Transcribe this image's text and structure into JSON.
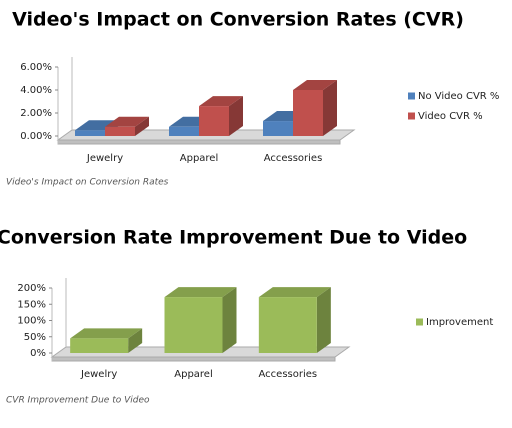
{
  "chart_data": [
    {
      "type": "bar3d",
      "title": "Video's Impact on Conversion Rates (CVR)",
      "categories": [
        "Jewelry",
        "Apparel",
        "Accessories"
      ],
      "series": [
        {
          "name": "No Video CVR %",
          "color": "#4f81bd",
          "values": [
            0.5,
            0.8,
            1.3
          ]
        },
        {
          "name": "Video CVR %",
          "color": "#c0504d",
          "values": [
            0.8,
            2.6,
            4.0
          ]
        }
      ],
      "ylim": [
        0,
        6
      ],
      "yticks": [
        {
          "value": 0,
          "label": "0.00%"
        },
        {
          "value": 2,
          "label": "2.00%"
        },
        {
          "value": 4,
          "label": "4.00%"
        },
        {
          "value": 6,
          "label": "6.00%"
        }
      ],
      "legend": "right",
      "caption": "Video's Impact on Conversion Rates"
    },
    {
      "type": "bar3d",
      "title": "Conversion Rate Improvement Due to Video",
      "categories": [
        "Jewelry",
        "Apparel",
        "Accessories"
      ],
      "series": [
        {
          "name": "Improvement",
          "color": "#9bbb59",
          "values": [
            45,
            172,
            172
          ]
        }
      ],
      "ylim": [
        0,
        200
      ],
      "yticks": [
        {
          "value": 0,
          "label": "0%"
        },
        {
          "value": 50,
          "label": "50%"
        },
        {
          "value": 100,
          "label": "100%"
        },
        {
          "value": 150,
          "label": "150%"
        },
        {
          "value": 200,
          "label": "200%"
        }
      ],
      "legend": "right",
      "caption": "CVR Improvement Due to Video"
    }
  ]
}
